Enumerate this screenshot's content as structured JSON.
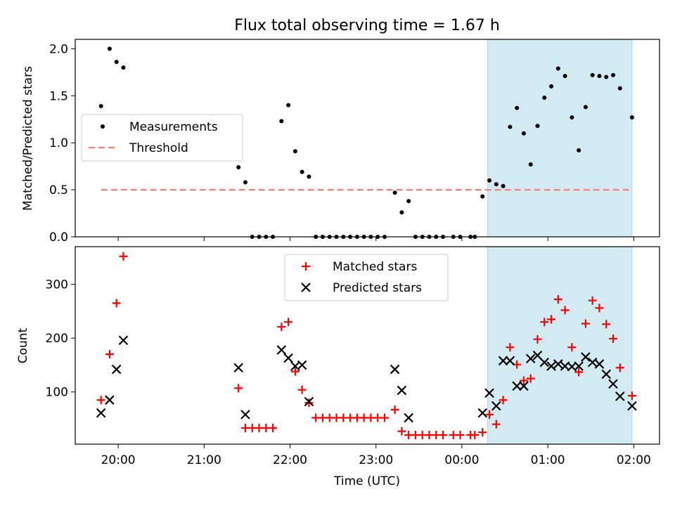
{
  "chart_data": [
    {
      "type": "scatter",
      "title": "Flux total observing time = 1.67 h",
      "ylabel": "Matched/Predicted stars",
      "xlabel": "",
      "xlim_hours": [
        19.5,
        26.3
      ],
      "ylim": [
        0,
        2.1
      ],
      "yticks": [
        "0.0",
        "0.5",
        "1.0",
        "1.5",
        "2.0"
      ],
      "grid": false,
      "legend_position": "upper-left",
      "highlight_span_hours": [
        24.3,
        25.98
      ],
      "highlight_color": "#add8e6",
      "series": [
        {
          "name": "Measurements",
          "color": "#000000",
          "marker": "dot",
          "points": [
            [
              19.8,
              1.39
            ],
            [
              19.9,
              2.0
            ],
            [
              19.98,
              1.86
            ],
            [
              20.06,
              1.8
            ],
            [
              21.4,
              0.74
            ],
            [
              21.48,
              0.58
            ],
            [
              21.56,
              0.0
            ],
            [
              21.64,
              0.0
            ],
            [
              21.72,
              0.0
            ],
            [
              21.8,
              0.0
            ],
            [
              21.9,
              1.23
            ],
            [
              21.98,
              1.4
            ],
            [
              22.06,
              0.91
            ],
            [
              22.14,
              0.69
            ],
            [
              22.22,
              0.64
            ],
            [
              22.3,
              0.0
            ],
            [
              22.38,
              0.0
            ],
            [
              22.46,
              0.0
            ],
            [
              22.54,
              0.0
            ],
            [
              22.62,
              0.0
            ],
            [
              22.7,
              0.0
            ],
            [
              22.78,
              0.0
            ],
            [
              22.86,
              0.0
            ],
            [
              22.94,
              0.0
            ],
            [
              23.02,
              0.0
            ],
            [
              23.1,
              0.0
            ],
            [
              23.22,
              0.47
            ],
            [
              23.3,
              0.26
            ],
            [
              23.38,
              0.38
            ],
            [
              23.46,
              0.0
            ],
            [
              23.54,
              0.0
            ],
            [
              23.62,
              0.0
            ],
            [
              23.7,
              0.0
            ],
            [
              23.78,
              0.0
            ],
            [
              23.9,
              0.0
            ],
            [
              23.98,
              0.0
            ],
            [
              24.1,
              0.0
            ],
            [
              24.15,
              0.0
            ],
            [
              24.24,
              0.43
            ],
            [
              24.32,
              0.6
            ],
            [
              24.4,
              0.56
            ],
            [
              24.48,
              0.54
            ],
            [
              24.56,
              1.17
            ],
            [
              24.64,
              1.37
            ],
            [
              24.72,
              1.1
            ],
            [
              24.8,
              0.77
            ],
            [
              24.88,
              1.18
            ],
            [
              24.96,
              1.48
            ],
            [
              25.04,
              1.6
            ],
            [
              25.12,
              1.79
            ],
            [
              25.2,
              1.71
            ],
            [
              25.28,
              1.27
            ],
            [
              25.36,
              0.92
            ],
            [
              25.44,
              1.38
            ],
            [
              25.52,
              1.72
            ],
            [
              25.6,
              1.71
            ],
            [
              25.68,
              1.7
            ],
            [
              25.76,
              1.72
            ],
            [
              25.84,
              1.58
            ],
            [
              25.98,
              1.27
            ]
          ]
        },
        {
          "name": "Threshold",
          "color": "#ff7f7f",
          "style": "dashed",
          "points": [
            [
              19.8,
              0.5
            ],
            [
              25.98,
              0.5
            ]
          ]
        }
      ]
    },
    {
      "type": "scatter",
      "title": "",
      "ylabel": "Count",
      "xlabel": "Time (UTC)",
      "xlim_hours": [
        19.5,
        26.3
      ],
      "ylim": [
        3,
        370
      ],
      "yticks": [
        "100",
        "200",
        "300"
      ],
      "grid": false,
      "legend_position": "upper-center",
      "highlight_span_hours": [
        24.3,
        25.98
      ],
      "highlight_color": "#add8e6",
      "xtick_labels": [
        "20:00",
        "21:00",
        "22:00",
        "23:00",
        "00:00",
        "01:00",
        "02:00"
      ],
      "xtick_hours": [
        20,
        21,
        22,
        23,
        24,
        25,
        26
      ],
      "series": [
        {
          "name": "Matched stars",
          "color": "#ff0000",
          "marker": "plus",
          "points": [
            [
              19.8,
              85
            ],
            [
              19.9,
              170
            ],
            [
              19.98,
              265
            ],
            [
              20.06,
              352
            ],
            [
              21.4,
              107
            ],
            [
              21.48,
              33
            ],
            [
              21.56,
              33
            ],
            [
              21.64,
              33
            ],
            [
              21.72,
              33
            ],
            [
              21.8,
              33
            ],
            [
              21.9,
              221
            ],
            [
              21.98,
              230
            ],
            [
              22.06,
              138
            ],
            [
              22.14,
              104
            ],
            [
              22.22,
              80
            ],
            [
              22.3,
              52
            ],
            [
              22.38,
              52
            ],
            [
              22.46,
              52
            ],
            [
              22.54,
              52
            ],
            [
              22.62,
              52
            ],
            [
              22.7,
              52
            ],
            [
              22.78,
              52
            ],
            [
              22.86,
              52
            ],
            [
              22.94,
              52
            ],
            [
              23.02,
              52
            ],
            [
              23.1,
              52
            ],
            [
              23.22,
              67
            ],
            [
              23.3,
              27
            ],
            [
              23.38,
              20
            ],
            [
              23.46,
              20
            ],
            [
              23.54,
              20
            ],
            [
              23.62,
              20
            ],
            [
              23.7,
              20
            ],
            [
              23.78,
              20
            ],
            [
              23.9,
              20
            ],
            [
              23.98,
              20
            ],
            [
              24.1,
              20
            ],
            [
              24.15,
              20
            ],
            [
              24.24,
              25
            ],
            [
              24.32,
              58
            ],
            [
              24.4,
              40
            ],
            [
              24.48,
              85
            ],
            [
              24.56,
              183
            ],
            [
              24.64,
              151
            ],
            [
              24.72,
              121
            ],
            [
              24.8,
              125
            ],
            [
              24.88,
              198
            ],
            [
              24.96,
              230
            ],
            [
              25.04,
              235
            ],
            [
              25.12,
              272
            ],
            [
              25.2,
              252
            ],
            [
              25.28,
              183
            ],
            [
              25.36,
              137
            ],
            [
              25.44,
              227
            ],
            [
              25.52,
              270
            ],
            [
              25.6,
              256
            ],
            [
              25.68,
              226
            ],
            [
              25.76,
              199
            ],
            [
              25.84,
              145
            ],
            [
              25.98,
              93
            ]
          ]
        },
        {
          "name": "Predicted stars",
          "color": "#000000",
          "marker": "x",
          "points": [
            [
              19.8,
              61
            ],
            [
              19.9,
              85
            ],
            [
              19.98,
              142
            ],
            [
              20.06,
              196
            ],
            [
              21.4,
              145
            ],
            [
              21.48,
              58
            ],
            [
              21.9,
              178
            ],
            [
              21.98,
              163
            ],
            [
              22.06,
              148
            ],
            [
              22.14,
              150
            ],
            [
              22.22,
              82
            ],
            [
              23.22,
              142
            ],
            [
              23.3,
              103
            ],
            [
              23.38,
              52
            ],
            [
              24.24,
              61
            ],
            [
              24.32,
              98
            ],
            [
              24.4,
              74
            ],
            [
              24.48,
              158
            ],
            [
              24.56,
              158
            ],
            [
              24.64,
              111
            ],
            [
              24.72,
              111
            ],
            [
              24.8,
              162
            ],
            [
              24.88,
              168
            ],
            [
              24.96,
              155
            ],
            [
              25.04,
              148
            ],
            [
              25.12,
              152
            ],
            [
              25.2,
              148
            ],
            [
              25.28,
              147
            ],
            [
              25.36,
              148
            ],
            [
              25.44,
              165
            ],
            [
              25.52,
              155
            ],
            [
              25.6,
              152
            ],
            [
              25.68,
              133
            ],
            [
              25.76,
              115
            ],
            [
              25.84,
              92
            ],
            [
              25.98,
              74
            ]
          ]
        }
      ]
    }
  ]
}
